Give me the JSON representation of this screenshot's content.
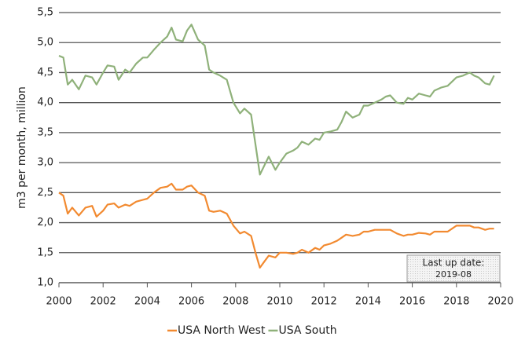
{
  "chart_data": {
    "type": "line",
    "y_label": "m3 per month, million",
    "annotation": [
      "Last up date:",
      "2019-08"
    ],
    "legend": "bottom",
    "grid": true,
    "xlim": [
      2000,
      2020
    ],
    "xticks": [
      2000,
      2002,
      2004,
      2006,
      2008,
      2010,
      2012,
      2014,
      2016,
      2018,
      2020
    ],
    "ylim": [
      1.0,
      5.5
    ],
    "yticks": [
      {
        "value": 1.0,
        "label": "1,0"
      },
      {
        "value": 1.5,
        "label": "1,5"
      },
      {
        "value": 2.0,
        "label": "2,0"
      },
      {
        "value": 2.5,
        "label": "2,5"
      },
      {
        "value": 3.0,
        "label": "3,0"
      },
      {
        "value": 3.5,
        "label": "3,5"
      },
      {
        "value": 4.0,
        "label": "4,0"
      },
      {
        "value": 4.5,
        "label": "4,5"
      },
      {
        "value": 5.0,
        "label": "5,0"
      },
      {
        "value": 5.5,
        "label": "5,5"
      }
    ],
    "x": [
      2000.0,
      2000.2,
      2000.4,
      2000.6,
      2000.9,
      2001.2,
      2001.5,
      2001.7,
      2002.0,
      2002.2,
      2002.5,
      2002.7,
      2003.0,
      2003.2,
      2003.5,
      2003.8,
      2004.0,
      2004.3,
      2004.6,
      2004.9,
      2005.1,
      2005.3,
      2005.6,
      2005.8,
      2006.0,
      2006.3,
      2006.6,
      2006.8,
      2007.0,
      2007.3,
      2007.6,
      2007.9,
      2008.2,
      2008.4,
      2008.7,
      2008.9,
      2009.1,
      2009.3,
      2009.5,
      2009.8,
      2010.0,
      2010.3,
      2010.6,
      2010.8,
      2011.0,
      2011.3,
      2011.6,
      2011.8,
      2012.0,
      2012.3,
      2012.6,
      2012.8,
      2013.0,
      2013.3,
      2013.6,
      2013.8,
      2014.0,
      2014.3,
      2014.6,
      2014.8,
      2015.0,
      2015.3,
      2015.6,
      2015.8,
      2016.0,
      2016.3,
      2016.6,
      2016.8,
      2017.0,
      2017.3,
      2017.6,
      2017.8,
      2018.0,
      2018.3,
      2018.6,
      2018.8,
      2019.0,
      2019.3,
      2019.5,
      2019.7
    ],
    "series": [
      {
        "name": "USA North West",
        "color": "#f28a30",
        "values": [
          2.5,
          2.45,
          2.15,
          2.25,
          2.12,
          2.25,
          2.28,
          2.1,
          2.2,
          2.3,
          2.32,
          2.25,
          2.3,
          2.28,
          2.35,
          2.38,
          2.4,
          2.5,
          2.58,
          2.6,
          2.65,
          2.55,
          2.55,
          2.6,
          2.62,
          2.5,
          2.45,
          2.2,
          2.18,
          2.2,
          2.15,
          1.95,
          1.82,
          1.85,
          1.78,
          1.5,
          1.25,
          1.35,
          1.45,
          1.42,
          1.5,
          1.5,
          1.48,
          1.5,
          1.55,
          1.5,
          1.58,
          1.55,
          1.62,
          1.65,
          1.7,
          1.75,
          1.8,
          1.78,
          1.8,
          1.85,
          1.85,
          1.88,
          1.88,
          1.88,
          1.88,
          1.82,
          1.78,
          1.8,
          1.8,
          1.83,
          1.82,
          1.8,
          1.85,
          1.85,
          1.85,
          1.9,
          1.95,
          1.95,
          1.95,
          1.92,
          1.92,
          1.88,
          1.9,
          1.9
        ]
      },
      {
        "name": "USA South",
        "color": "#8fb17a",
        "values": [
          4.78,
          4.75,
          4.3,
          4.38,
          4.22,
          4.45,
          4.42,
          4.3,
          4.5,
          4.62,
          4.6,
          4.38,
          4.55,
          4.5,
          4.65,
          4.75,
          4.75,
          4.88,
          5.0,
          5.1,
          5.25,
          5.05,
          5.02,
          5.2,
          5.3,
          5.05,
          4.95,
          4.55,
          4.5,
          4.45,
          4.38,
          4.0,
          3.82,
          3.9,
          3.8,
          3.3,
          2.8,
          2.95,
          3.1,
          2.88,
          3.0,
          3.15,
          3.2,
          3.25,
          3.35,
          3.3,
          3.4,
          3.38,
          3.5,
          3.52,
          3.55,
          3.68,
          3.85,
          3.75,
          3.8,
          3.95,
          3.95,
          4.0,
          4.05,
          4.1,
          4.12,
          4.0,
          3.98,
          4.08,
          4.05,
          4.15,
          4.12,
          4.1,
          4.2,
          4.25,
          4.28,
          4.35,
          4.42,
          4.45,
          4.5,
          4.45,
          4.42,
          4.32,
          4.3,
          4.45
        ]
      }
    ]
  }
}
